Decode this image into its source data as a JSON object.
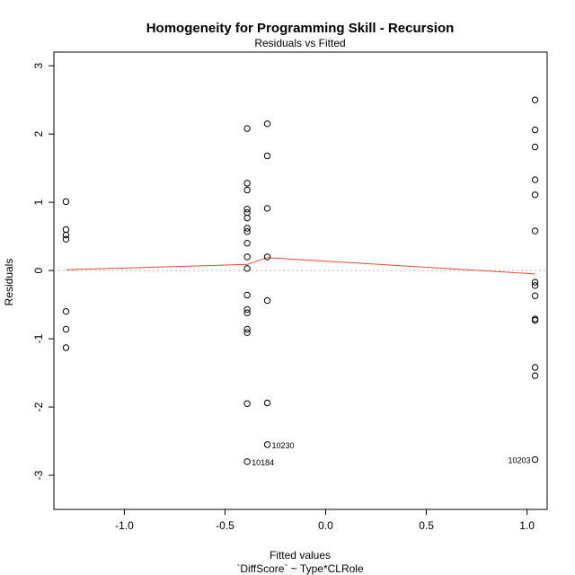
{
  "chart_data": {
    "type": "scatter",
    "title": "Homogeneity for Programming Skill - Recursion",
    "subtitle": "Residuals vs Fitted",
    "xlabel": "Fitted values",
    "xlabel2": "`DiffScore` ~ Type*CLRole",
    "ylabel": "Residuals",
    "xlim": [
      -1.35,
      1.1
    ],
    "ylim": [
      -3.5,
      3.2
    ],
    "x_ticks": [
      -1.0,
      -0.5,
      0.0,
      0.5,
      1.0
    ],
    "x_tick_labels": [
      "-1.0",
      "-0.5",
      "0.0",
      "0.5",
      "1.0"
    ],
    "y_ticks": [
      -3,
      -2,
      -1,
      0,
      1,
      2,
      3
    ],
    "y_tick_labels": [
      "-3",
      "-2",
      "-1",
      "0",
      "1",
      "2",
      "3"
    ],
    "points": [
      {
        "x": -1.29,
        "y": 1.01
      },
      {
        "x": -1.29,
        "y": 0.6
      },
      {
        "x": -1.29,
        "y": 0.52
      },
      {
        "x": -1.29,
        "y": 0.46
      },
      {
        "x": -1.29,
        "y": -0.6
      },
      {
        "x": -1.29,
        "y": -0.86
      },
      {
        "x": -1.29,
        "y": -1.13
      },
      {
        "x": -0.39,
        "y": 2.08
      },
      {
        "x": -0.39,
        "y": 1.28
      },
      {
        "x": -0.39,
        "y": 1.18
      },
      {
        "x": -0.39,
        "y": 0.9
      },
      {
        "x": -0.39,
        "y": 0.85
      },
      {
        "x": -0.39,
        "y": 0.77
      },
      {
        "x": -0.39,
        "y": 0.62
      },
      {
        "x": -0.39,
        "y": 0.57
      },
      {
        "x": -0.39,
        "y": 0.4
      },
      {
        "x": -0.39,
        "y": 0.2
      },
      {
        "x": -0.39,
        "y": 0.03
      },
      {
        "x": -0.39,
        "y": -0.36
      },
      {
        "x": -0.39,
        "y": -0.57
      },
      {
        "x": -0.39,
        "y": -0.62
      },
      {
        "x": -0.39,
        "y": -0.86
      },
      {
        "x": -0.39,
        "y": -0.91
      },
      {
        "x": -0.39,
        "y": -1.95
      },
      {
        "x": -0.39,
        "y": -2.8
      },
      {
        "x": -0.29,
        "y": 2.15
      },
      {
        "x": -0.29,
        "y": 1.68
      },
      {
        "x": -0.29,
        "y": 0.91
      },
      {
        "x": -0.29,
        "y": 0.2
      },
      {
        "x": -0.29,
        "y": -0.44
      },
      {
        "x": -0.29,
        "y": -1.94
      },
      {
        "x": -0.29,
        "y": -2.55
      },
      {
        "x": 1.04,
        "y": 2.5
      },
      {
        "x": 1.04,
        "y": 2.06
      },
      {
        "x": 1.04,
        "y": 1.81
      },
      {
        "x": 1.04,
        "y": 1.33
      },
      {
        "x": 1.04,
        "y": 1.11
      },
      {
        "x": 1.04,
        "y": 0.58
      },
      {
        "x": 1.04,
        "y": -0.17
      },
      {
        "x": 1.04,
        "y": -0.22
      },
      {
        "x": 1.04,
        "y": -0.37
      },
      {
        "x": 1.04,
        "y": -0.71
      },
      {
        "x": 1.04,
        "y": -0.73
      },
      {
        "x": 1.04,
        "y": -1.42
      },
      {
        "x": 1.04,
        "y": -1.54
      },
      {
        "x": 1.04,
        "y": -2.77
      }
    ],
    "labelled_points": [
      {
        "x": -0.29,
        "y": -2.55,
        "label": "10230",
        "side": "right"
      },
      {
        "x": -0.39,
        "y": -2.8,
        "label": "10184",
        "side": "right"
      },
      {
        "x": 1.04,
        "y": -2.77,
        "label": "10203",
        "side": "left"
      }
    ],
    "smoother": [
      {
        "x": -1.29,
        "y": 0.01
      },
      {
        "x": -0.39,
        "y": 0.09
      },
      {
        "x": -0.29,
        "y": 0.19
      },
      {
        "x": 1.04,
        "y": -0.05
      }
    ],
    "reference_line_y": 0,
    "colors": {
      "points": "#000000",
      "smoother": "#e8473d",
      "reference": "#bbbbbb"
    }
  }
}
